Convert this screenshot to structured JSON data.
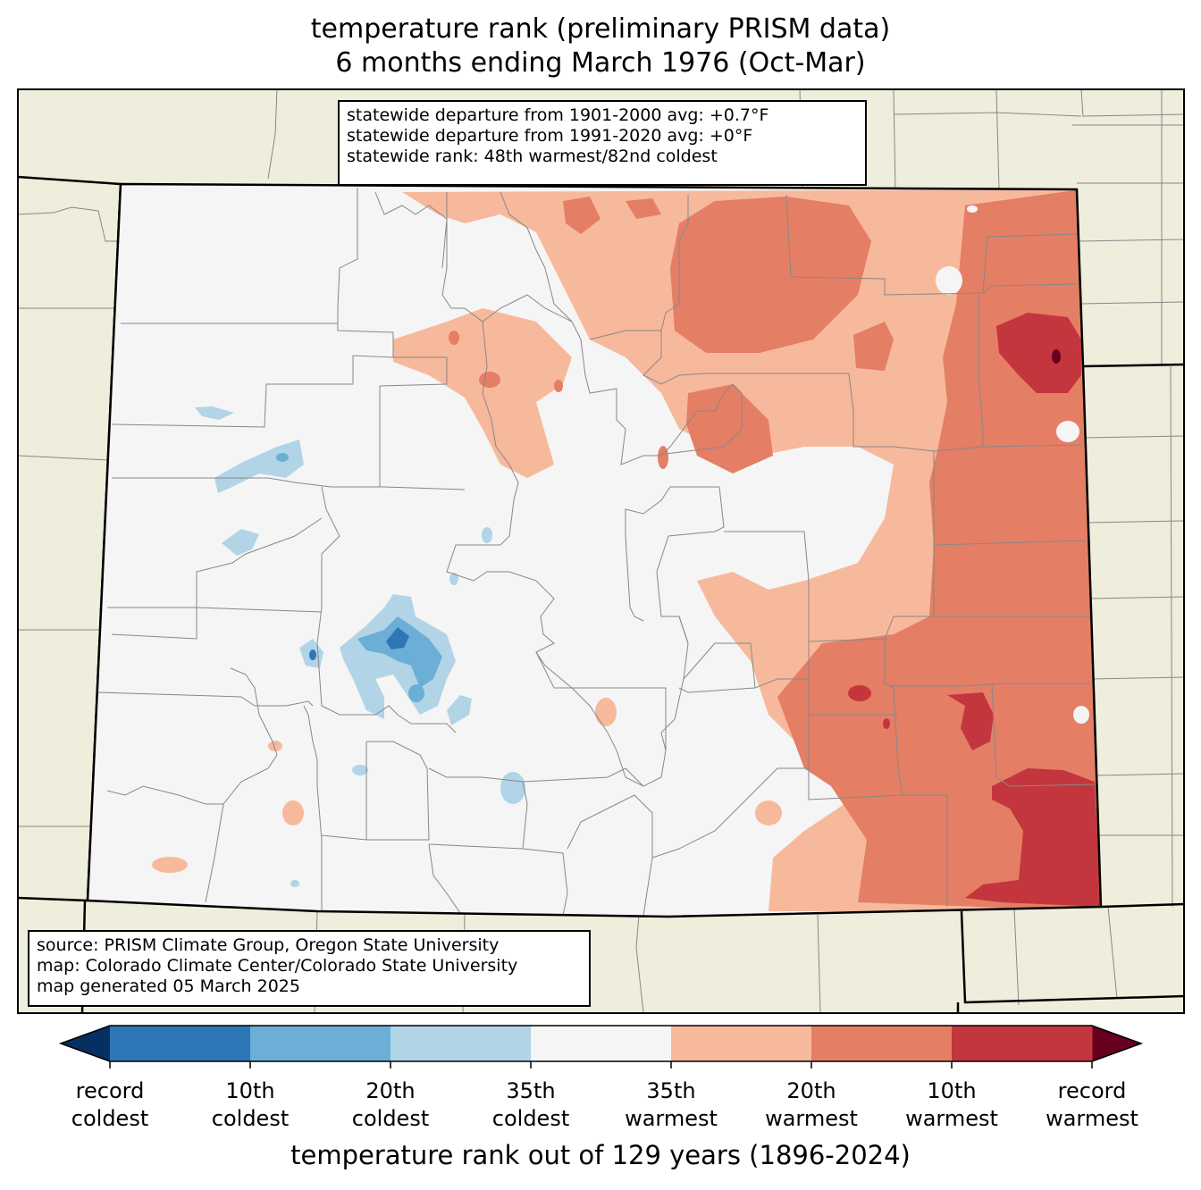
{
  "title": {
    "line1": "temperature rank (preliminary PRISM data)",
    "line2": "6 months ending March 1976 (Oct-Mar)"
  },
  "stats": {
    "line1": "statewide departure from 1901-2000 avg: +0.7°F",
    "line2": "statewide departure from 1991-2020 avg: +0°F",
    "line3": "statewide rank: 48th warmest/82nd coldest"
  },
  "source": {
    "line1": "source: PRISM Climate Group, Oregon State University",
    "line2": "map: Colorado Climate Center/Colorado State University",
    "line3": "map generated 05 March 2025"
  },
  "colorbar": {
    "title": "temperature rank out of 129 years (1896-2024)",
    "extend_low_color": "#053061",
    "extend_high_color": "#67001f",
    "bins": [
      {
        "color": "#2e77b6"
      },
      {
        "color": "#6baed6"
      },
      {
        "color": "#b2d4e7"
      },
      {
        "color": "#f5f5f5"
      },
      {
        "color": "#f7b99c"
      },
      {
        "color": "#e47e65"
      },
      {
        "color": "#c4363d"
      }
    ],
    "tick_labels": [
      {
        "l1": "record",
        "l2": "coldest"
      },
      {
        "l1": "10th",
        "l2": "coldest"
      },
      {
        "l1": "20th",
        "l2": "coldest"
      },
      {
        "l1": "35th",
        "l2": "coldest"
      },
      {
        "l1": "35th",
        "l2": "warmest"
      },
      {
        "l1": "20th",
        "l2": "warmest"
      },
      {
        "l1": "10th",
        "l2": "warmest"
      },
      {
        "l1": "record",
        "l2": "warmest"
      }
    ]
  },
  "colors": {
    "outside_land": "#efeddc",
    "neutral": "#f5f5f5",
    "county_lines": "#888888",
    "state_lines": "#000000"
  }
}
